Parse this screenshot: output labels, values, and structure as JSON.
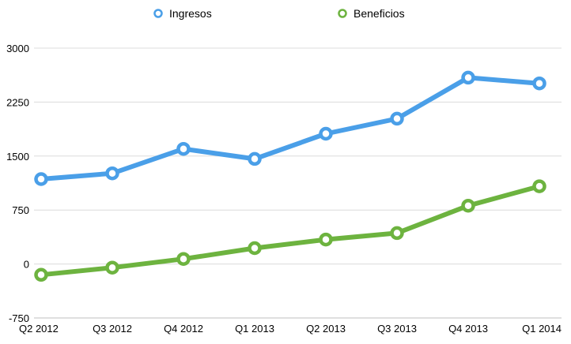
{
  "chart_data": {
    "type": "line",
    "categories": [
      "Q2 2012",
      "Q3 2012",
      "Q4 2012",
      "Q1 2013",
      "Q2 2013",
      "Q3 2013",
      "Q4 2013",
      "Q1 2014"
    ],
    "series": [
      {
        "name": "Ingresos",
        "color": "#4a9fe8",
        "values": [
          1180,
          1260,
          1600,
          1460,
          1810,
          2020,
          2590,
          2510
        ]
      },
      {
        "name": "Beneficios",
        "color": "#6db33f",
        "values": [
          -150,
          -50,
          70,
          220,
          340,
          430,
          810,
          1080
        ]
      }
    ],
    "yticks": [
      -750,
      0,
      750,
      1500,
      2250,
      3000
    ],
    "ylim": [
      -750,
      3000
    ],
    "grid": true,
    "legend_position": "top"
  }
}
